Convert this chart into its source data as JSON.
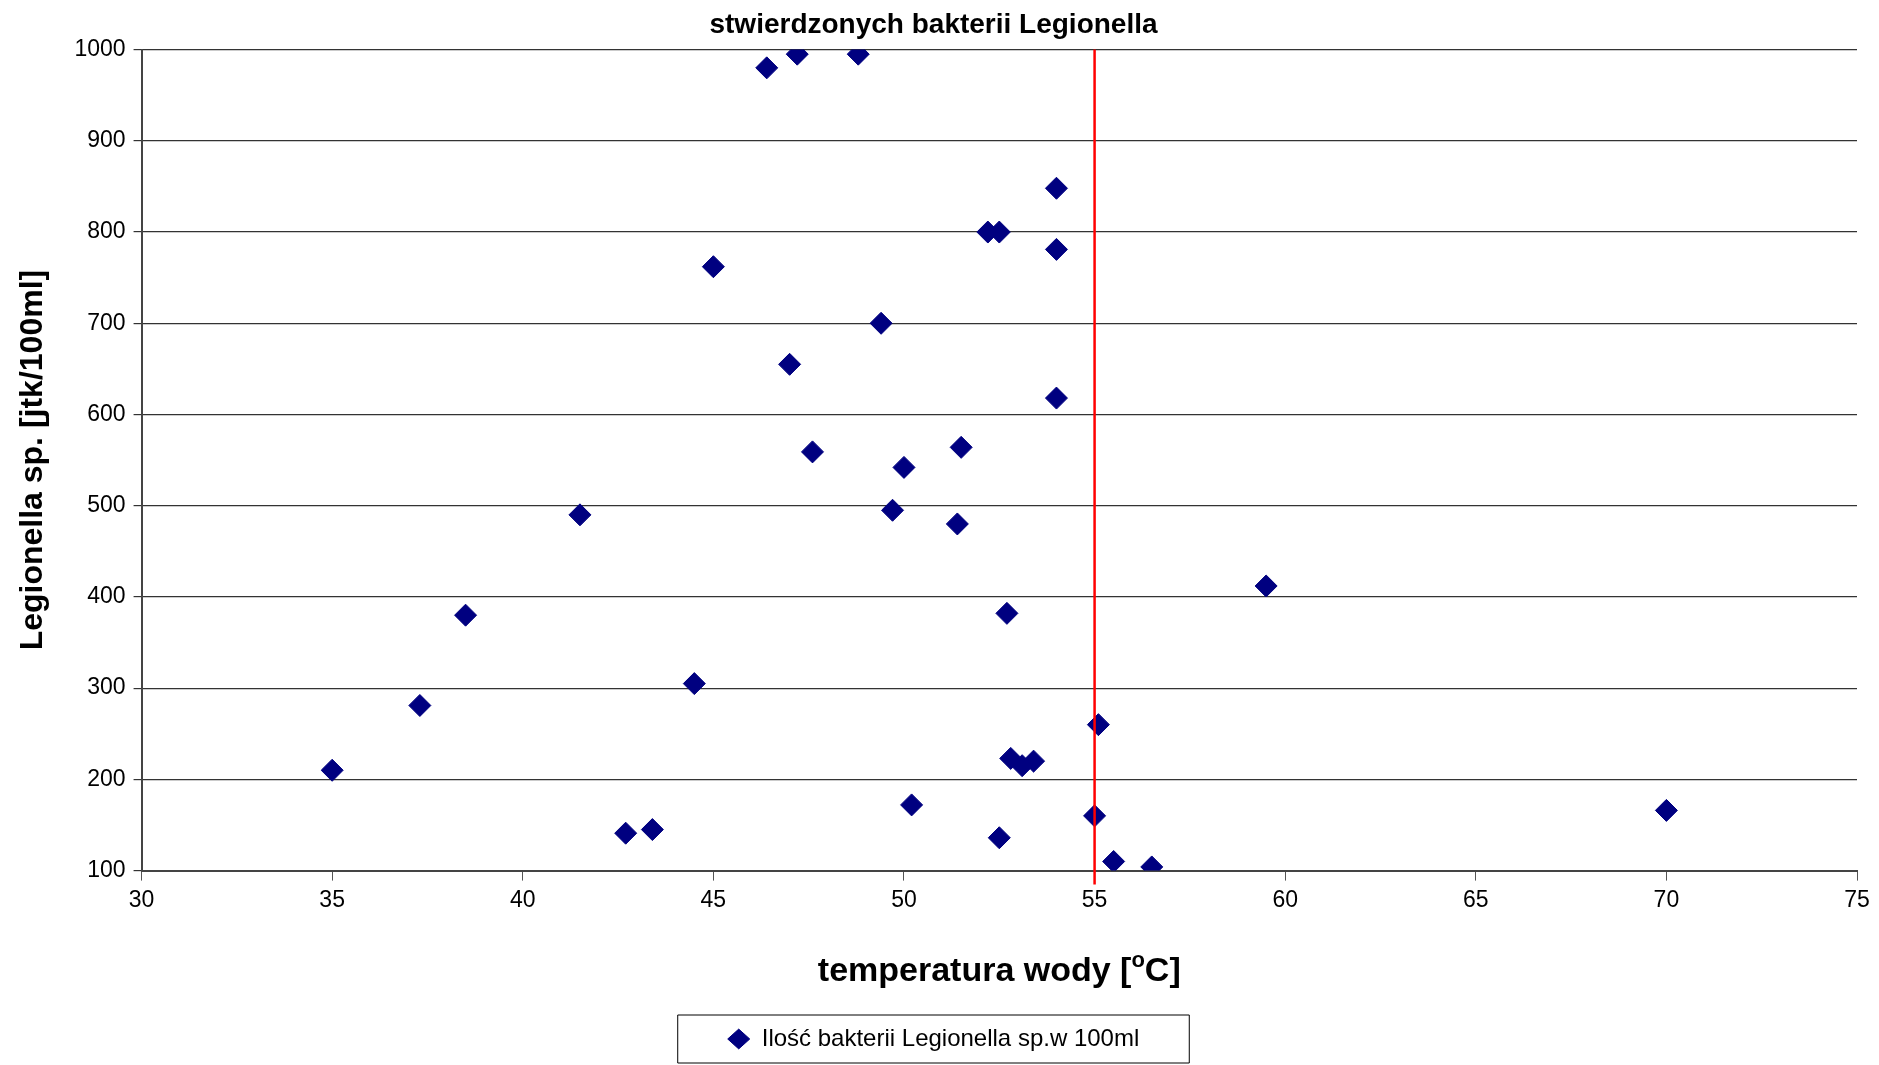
{
  "chart_data": {
    "type": "scatter",
    "title": "stwierdzonych bakterii Legionella",
    "xlabel": "temperatura wody [$^{o}$C]",
    "ylabel": "Legionella sp. [jtk/100ml]",
    "x": [
      35.0,
      37.3,
      38.5,
      41.5,
      42.7,
      43.4,
      44.5,
      45.0,
      46.4,
      47.2,
      47.0,
      47.6,
      48.8,
      49.4,
      49.7,
      50.0,
      50.2,
      51.5,
      51.4,
      52.2,
      52.5,
      52.5,
      52.7,
      52.8,
      53.1,
      53.4,
      54.0,
      54.0,
      54.0,
      55.1,
      55.0,
      55.5,
      56.5,
      59.5,
      70.0
    ],
    "series": [
      {
        "name": "Ilość bakterii Legionella sp.w 100ml",
        "color": "#000080",
        "values": [
          210,
          281,
          380,
          490,
          141,
          145,
          305,
          762,
          980,
          995,
          655,
          559,
          995,
          700,
          495,
          542,
          172,
          564,
          480,
          800,
          800,
          136,
          382,
          223,
          215,
          220,
          848,
          781,
          618,
          260,
          160,
          110,
          104,
          412,
          166
        ]
      }
    ],
    "xlim": [
      30,
      75
    ],
    "xticks": [
      30,
      35,
      40,
      45,
      50,
      55,
      60,
      65,
      70,
      75
    ],
    "ylim": [
      100,
      1000
    ],
    "yticks": [
      100,
      200,
      300,
      400,
      500,
      600,
      700,
      800,
      900,
      1000
    ],
    "grid": "y",
    "legend": "bottom",
    "marker": "diamond",
    "ref_lines": [
      {
        "axis": "x",
        "value": 55,
        "color": "#ff0000"
      }
    ]
  }
}
